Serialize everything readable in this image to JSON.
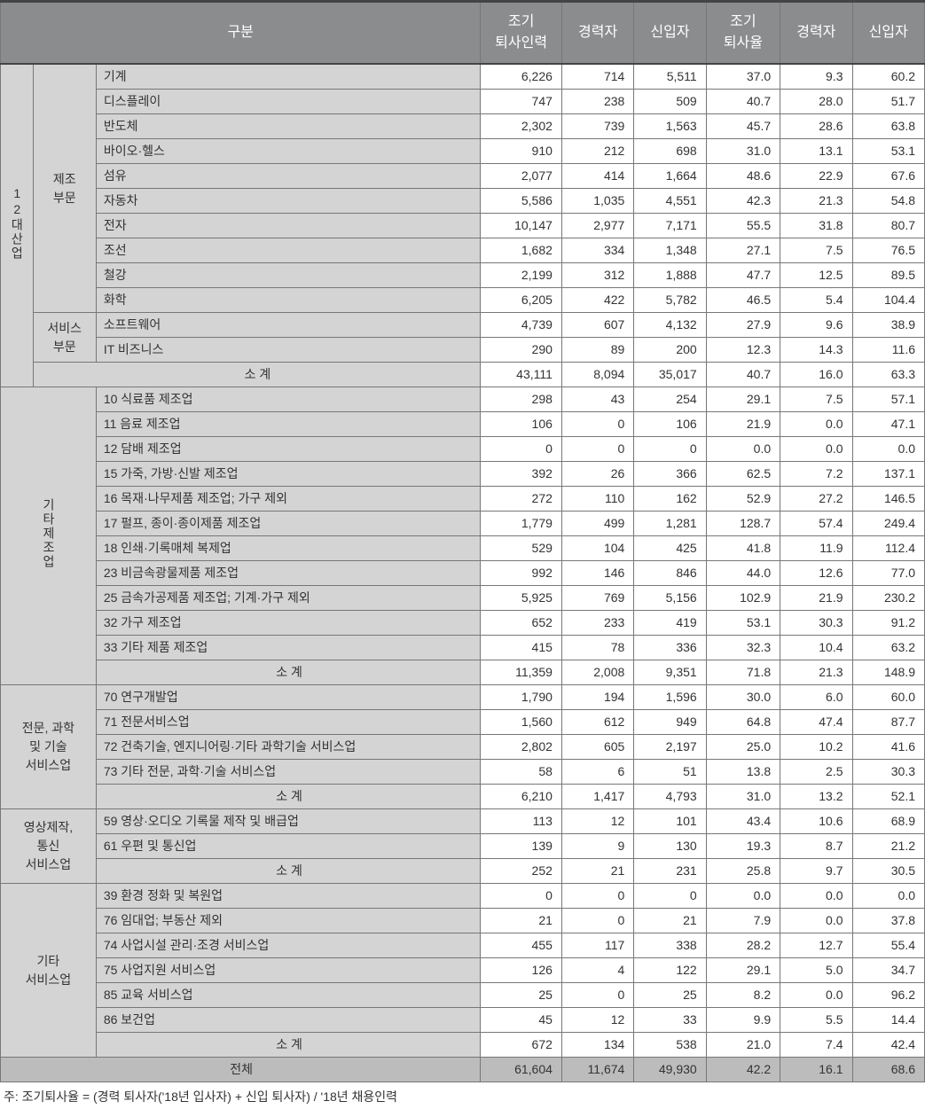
{
  "columns": {
    "c1": "구분",
    "c2": "조기\n퇴사인력",
    "c3": "경력자",
    "c4": "신입자",
    "c5": "조기\n퇴사율",
    "c6": "경력자",
    "c7": "신입자"
  },
  "colors": {
    "header_bg": "#8a8c8d",
    "header_text": "#ffffff",
    "cat_bg": "#d4d4d4",
    "total_bg": "#bcbcbc",
    "border": "#777777",
    "text": "#333333"
  },
  "section1": {
    "top_label": "12대산업",
    "group1_label": "제조\n부문",
    "group2_label": "서비스\n부문",
    "rows_g1": [
      {
        "label": "기계",
        "v": [
          "6,226",
          "714",
          "5,511",
          "37.0",
          "9.3",
          "60.2"
        ]
      },
      {
        "label": "디스플레이",
        "v": [
          "747",
          "238",
          "509",
          "40.7",
          "28.0",
          "51.7"
        ]
      },
      {
        "label": "반도체",
        "v": [
          "2,302",
          "739",
          "1,563",
          "45.7",
          "28.6",
          "63.8"
        ]
      },
      {
        "label": "바이오·헬스",
        "v": [
          "910",
          "212",
          "698",
          "31.0",
          "13.1",
          "53.1"
        ]
      },
      {
        "label": "섬유",
        "v": [
          "2,077",
          "414",
          "1,664",
          "48.6",
          "22.9",
          "67.6"
        ]
      },
      {
        "label": "자동차",
        "v": [
          "5,586",
          "1,035",
          "4,551",
          "42.3",
          "21.3",
          "54.8"
        ]
      },
      {
        "label": "전자",
        "v": [
          "10,147",
          "2,977",
          "7,171",
          "55.5",
          "31.8",
          "80.7"
        ]
      },
      {
        "label": "조선",
        "v": [
          "1,682",
          "334",
          "1,348",
          "27.1",
          "7.5",
          "76.5"
        ]
      },
      {
        "label": "철강",
        "v": [
          "2,199",
          "312",
          "1,888",
          "47.7",
          "12.5",
          "89.5"
        ]
      },
      {
        "label": "화학",
        "v": [
          "6,205",
          "422",
          "5,782",
          "46.5",
          "5.4",
          "104.4"
        ]
      }
    ],
    "rows_g2": [
      {
        "label": "소프트웨어",
        "v": [
          "4,739",
          "607",
          "4,132",
          "27.9",
          "9.6",
          "38.9"
        ]
      },
      {
        "label": "IT 비즈니스",
        "v": [
          "290",
          "89",
          "200",
          "12.3",
          "14.3",
          "11.6"
        ]
      }
    ],
    "subtotal": {
      "label": "소 계",
      "v": [
        "43,111",
        "8,094",
        "35,017",
        "40.7",
        "16.0",
        "63.3"
      ]
    }
  },
  "section2": {
    "top_label": "기타제조업",
    "rows": [
      {
        "label": "10 식료품 제조업",
        "v": [
          "298",
          "43",
          "254",
          "29.1",
          "7.5",
          "57.1"
        ]
      },
      {
        "label": "11 음료 제조업",
        "v": [
          "106",
          "0",
          "106",
          "21.9",
          "0.0",
          "47.1"
        ]
      },
      {
        "label": "12 담배 제조업",
        "v": [
          "0",
          "0",
          "0",
          "0.0",
          "0.0",
          "0.0"
        ]
      },
      {
        "label": "15 가죽, 가방·신발 제조업",
        "v": [
          "392",
          "26",
          "366",
          "62.5",
          "7.2",
          "137.1"
        ]
      },
      {
        "label": "16 목재·나무제품 제조업; 가구 제외",
        "v": [
          "272",
          "110",
          "162",
          "52.9",
          "27.2",
          "146.5"
        ]
      },
      {
        "label": "17 펄프, 종이·종이제품 제조업",
        "v": [
          "1,779",
          "499",
          "1,281",
          "128.7",
          "57.4",
          "249.4"
        ]
      },
      {
        "label": "18 인쇄·기록매체 복제업",
        "v": [
          "529",
          "104",
          "425",
          "41.8",
          "11.9",
          "112.4"
        ]
      },
      {
        "label": "23 비금속광물제품 제조업",
        "v": [
          "992",
          "146",
          "846",
          "44.0",
          "12.6",
          "77.0"
        ]
      },
      {
        "label": "25 금속가공제품 제조업; 기계·가구 제외",
        "v": [
          "5,925",
          "769",
          "5,156",
          "102.9",
          "21.9",
          "230.2"
        ]
      },
      {
        "label": "32 가구 제조업",
        "v": [
          "652",
          "233",
          "419",
          "53.1",
          "30.3",
          "91.2"
        ]
      },
      {
        "label": "33 기타 제품 제조업",
        "v": [
          "415",
          "78",
          "336",
          "32.3",
          "10.4",
          "63.2"
        ]
      }
    ],
    "subtotal": {
      "label": "소 계",
      "v": [
        "11,359",
        "2,008",
        "9,351",
        "71.8",
        "21.3",
        "148.9"
      ]
    }
  },
  "section3": {
    "top_label": "전문, 과학\n및 기술\n서비스업",
    "rows": [
      {
        "label": "70 연구개발업",
        "v": [
          "1,790",
          "194",
          "1,596",
          "30.0",
          "6.0",
          "60.0"
        ]
      },
      {
        "label": "71 전문서비스업",
        "v": [
          "1,560",
          "612",
          "949",
          "64.8",
          "47.4",
          "87.7"
        ]
      },
      {
        "label": "72 건축기술, 엔지니어링·기타 과학기술 서비스업",
        "v": [
          "2,802",
          "605",
          "2,197",
          "25.0",
          "10.2",
          "41.6"
        ]
      },
      {
        "label": "73 기타 전문, 과학·기술 서비스업",
        "v": [
          "58",
          "6",
          "51",
          "13.8",
          "2.5",
          "30.3"
        ]
      }
    ],
    "subtotal": {
      "label": "소 계",
      "v": [
        "6,210",
        "1,417",
        "4,793",
        "31.0",
        "13.2",
        "52.1"
      ]
    }
  },
  "section4": {
    "top_label": "영상제작,\n통신\n서비스업",
    "rows": [
      {
        "label": "59 영상·오디오 기록물 제작 및 배급업",
        "v": [
          "113",
          "12",
          "101",
          "43.4",
          "10.6",
          "68.9"
        ]
      },
      {
        "label": "61 우편 및 통신업",
        "v": [
          "139",
          "9",
          "130",
          "19.3",
          "8.7",
          "21.2"
        ]
      }
    ],
    "subtotal": {
      "label": "소 계",
      "v": [
        "252",
        "21",
        "231",
        "25.8",
        "9.7",
        "30.5"
      ]
    }
  },
  "section5": {
    "top_label": "기타\n서비스업",
    "rows": [
      {
        "label": "39 환경 정화 및 복원업",
        "v": [
          "0",
          "0",
          "0",
          "0.0",
          "0.0",
          "0.0"
        ]
      },
      {
        "label": "76 임대업; 부동산 제외",
        "v": [
          "21",
          "0",
          "21",
          "7.9",
          "0.0",
          "37.8"
        ]
      },
      {
        "label": "74 사업시설 관리·조경 서비스업",
        "v": [
          "455",
          "117",
          "338",
          "28.2",
          "12.7",
          "55.4"
        ]
      },
      {
        "label": "75 사업지원 서비스업",
        "v": [
          "126",
          "4",
          "122",
          "29.1",
          "5.0",
          "34.7"
        ]
      },
      {
        "label": "85 교육 서비스업",
        "v": [
          "25",
          "0",
          "25",
          "8.2",
          "0.0",
          "96.2"
        ]
      },
      {
        "label": "86 보건업",
        "v": [
          "45",
          "12",
          "33",
          "9.9",
          "5.5",
          "14.4"
        ]
      }
    ],
    "subtotal": {
      "label": "소 계",
      "v": [
        "672",
        "134",
        "538",
        "21.0",
        "7.4",
        "42.4"
      ]
    }
  },
  "total": {
    "label": "전체",
    "v": [
      "61,604",
      "11,674",
      "49,930",
      "42.2",
      "16.1",
      "68.6"
    ]
  },
  "footnote": "주: 조기퇴사율 = (경력 퇴사자('18년 입사자) + 신입 퇴사자) / '18년 채용인력"
}
